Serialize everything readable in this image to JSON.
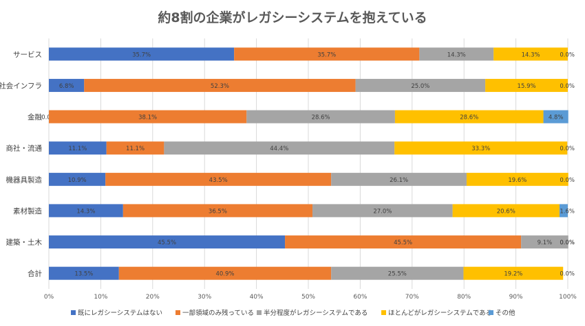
{
  "chart_data": {
    "type": "bar",
    "orientation": "horizontal",
    "stacked": "percent",
    "title": "約8割の企業がレガシーシステムを抱えている",
    "categories": [
      "サービス",
      "社会インフラ",
      "金融",
      "商社・流通",
      "機器具製造",
      "素材製造",
      "建築・土木",
      "合計"
    ],
    "x_ticks": [
      "0%",
      "10%",
      "20%",
      "30%",
      "40%",
      "50%",
      "60%",
      "70%",
      "80%",
      "90%",
      "100%"
    ],
    "xlim": [
      0,
      100
    ],
    "grid": true,
    "legend_position": "bottom",
    "series": [
      {
        "name": "既にレガシーシステムはない",
        "color": "#4472C4",
        "values": [
          35.7,
          6.8,
          0.0,
          11.1,
          10.9,
          14.3,
          45.5,
          13.5
        ],
        "labels": [
          "35.7%",
          "6.8%",
          "0.0%",
          "11.1%",
          "10.9%",
          "14.3%",
          "45.5%",
          "13.5%"
        ]
      },
      {
        "name": "一部領域のみ残っている",
        "color": "#ED7D31",
        "values": [
          35.7,
          52.3,
          38.1,
          11.1,
          43.5,
          36.5,
          45.5,
          40.9
        ],
        "labels": [
          "35.7%",
          "52.3%",
          "38.1%",
          "11.1%",
          "43.5%",
          "36.5%",
          "45.5%",
          "40.9%"
        ]
      },
      {
        "name": "半分程度がレガシーシステムである",
        "color": "#A5A5A5",
        "values": [
          14.3,
          25.0,
          28.6,
          44.4,
          26.1,
          27.0,
          9.1,
          25.5
        ],
        "labels": [
          "14.3%",
          "25.0%",
          "28.6%",
          "44.4%",
          "26.1%",
          "27.0%",
          "9.1%",
          "25.5%"
        ]
      },
      {
        "name": "ほとんどがレガシーシステムである",
        "color": "#FFC000",
        "values": [
          14.3,
          15.9,
          28.6,
          33.3,
          19.6,
          20.6,
          0.0,
          19.2
        ],
        "labels": [
          "14.3%",
          "15.9%",
          "28.6%",
          "33.3%",
          "19.6%",
          "20.6%",
          "0.0%",
          "19.2%"
        ]
      },
      {
        "name": "その他",
        "color": "#5B9BD5",
        "values": [
          0.0,
          0.0,
          4.8,
          0.0,
          0.0,
          1.6,
          0.0,
          0.0
        ],
        "labels": [
          "0.0%",
          "0.0%",
          "4.8%",
          "0.0%",
          "0.0%",
          "1.6%",
          "0.0%",
          "0.0%"
        ]
      }
    ]
  }
}
